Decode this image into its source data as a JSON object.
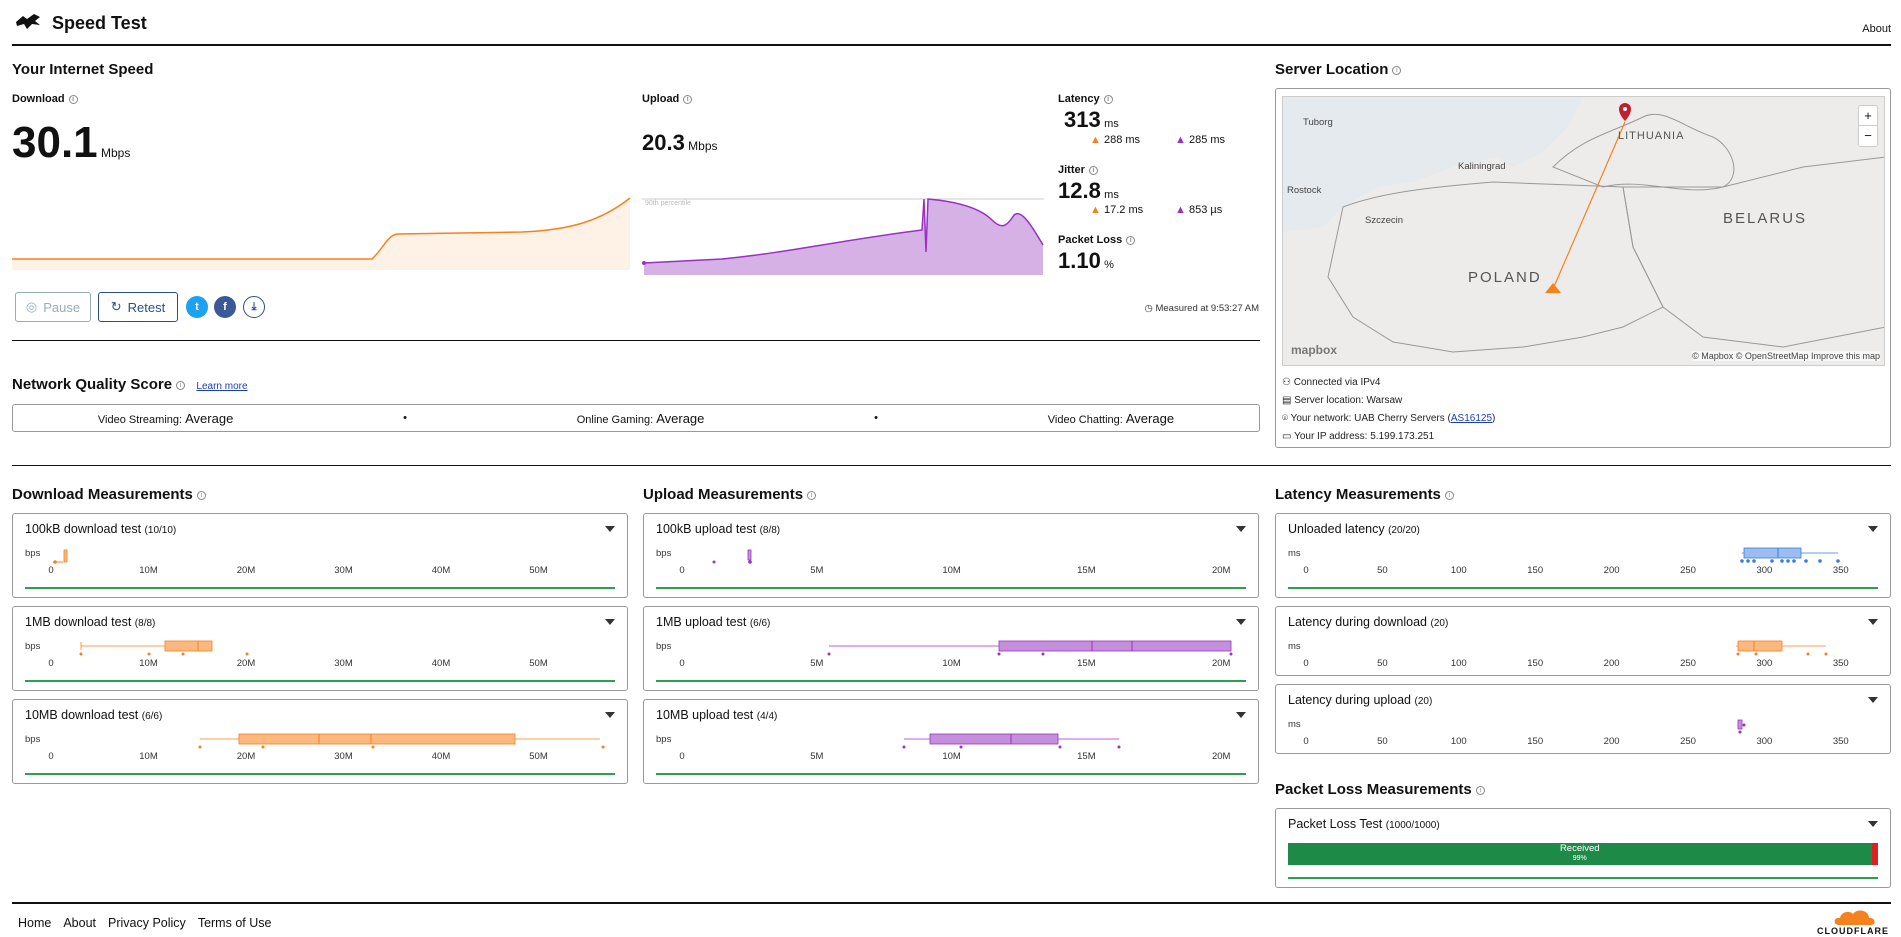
{
  "header": {
    "title": "Speed Test",
    "about": "About"
  },
  "speed": {
    "section_title": "Your Internet Speed",
    "download_label": "Download",
    "download_value": "30.1",
    "download_unit": "Mbps",
    "upload_label": "Upload",
    "upload_value": "20.3",
    "upload_unit": "Mbps",
    "percentile_label": "90th percentile",
    "latency_label": "Latency",
    "latency_value": "313",
    "latency_unit": "ms",
    "latency_down": "288",
    "latency_down_unit": "ms",
    "latency_up": "285",
    "latency_up_unit": "ms",
    "jitter_label": "Jitter",
    "jitter_value": "12.8",
    "jitter_unit": "ms",
    "jitter_down": "17.2",
    "jitter_down_unit": "ms",
    "jitter_up": "853",
    "jitter_up_unit": "µs",
    "packet_loss_label": "Packet Loss",
    "packet_loss_value": "1.10",
    "packet_loss_unit": "%",
    "measured_at": "Measured at 9:53:27 AM"
  },
  "actions": {
    "pause": "Pause",
    "retest": "Retest"
  },
  "quality": {
    "title": "Network Quality Score",
    "learn_more": "Learn more",
    "items": [
      {
        "label": "Video Streaming:",
        "value": "Average"
      },
      {
        "label": "Online Gaming:",
        "value": "Average"
      },
      {
        "label": "Video Chatting:",
        "value": "Average"
      }
    ]
  },
  "server": {
    "title": "Server Location",
    "map_labels": {
      "lithuania": "LITHUANIA",
      "belarus": "BELARUS",
      "poland": "POLAND",
      "kaliningrad": "Kaliningrad",
      "szczecin": "Szczecin",
      "rostock": "Rostock",
      "tuborg": "Tuborg",
      "attribution": "© Mapbox © OpenStreetMap Improve this map",
      "mapbox": "mapbox",
      "zoom_in": "+",
      "zoom_out": "−"
    },
    "connected_via": "Connected via IPv4",
    "server_location": "Server location: Warsaw",
    "network_prefix": "Your network: UAB Cherry Servers (",
    "network_asn": "AS16125",
    "network_suffix": ")",
    "ip_address": "Your IP address: 5.199.173.251"
  },
  "download_measurements": {
    "title": "Download Measurements",
    "unit": "bps",
    "ticks": [
      "0",
      "10M",
      "20M",
      "30M",
      "40M",
      "50M"
    ],
    "tests": [
      {
        "name": "100kB download test",
        "count": "(10/10)"
      },
      {
        "name": "1MB download test",
        "count": "(8/8)"
      },
      {
        "name": "10MB download test",
        "count": "(6/6)"
      }
    ]
  },
  "upload_measurements": {
    "title": "Upload Measurements",
    "unit": "bps",
    "ticks": [
      "0",
      "5M",
      "10M",
      "15M",
      "20M"
    ],
    "tests": [
      {
        "name": "100kB upload test",
        "count": "(8/8)"
      },
      {
        "name": "1MB upload test",
        "count": "(6/6)"
      },
      {
        "name": "10MB upload test",
        "count": "(4/4)"
      }
    ]
  },
  "latency_measurements": {
    "title": "Latency Measurements",
    "unit": "ms",
    "ticks": [
      "0",
      "50",
      "100",
      "150",
      "200",
      "250",
      "300",
      "350"
    ],
    "tests": [
      {
        "name": "Unloaded latency",
        "count": "(20/20)"
      },
      {
        "name": "Latency during download",
        "count": "(20)"
      },
      {
        "name": "Latency during upload",
        "count": "(20)"
      }
    ]
  },
  "packet_loss": {
    "title": "Packet Loss Measurements",
    "test_name": "Packet Loss Test",
    "test_count": "(1000/1000)",
    "received_label": "Received",
    "received_pct": "99%",
    "received_fraction": 0.989
  },
  "footer": {
    "links": [
      "Home",
      "About",
      "Privacy Policy",
      "Terms of Use"
    ],
    "brand": "CLOUDFLARE"
  },
  "colors": {
    "download": "#f6821f",
    "upload": "#9b30c3",
    "latency": "#3b7ddd",
    "green": "#2e9e4f",
    "red": "#e02020"
  }
}
